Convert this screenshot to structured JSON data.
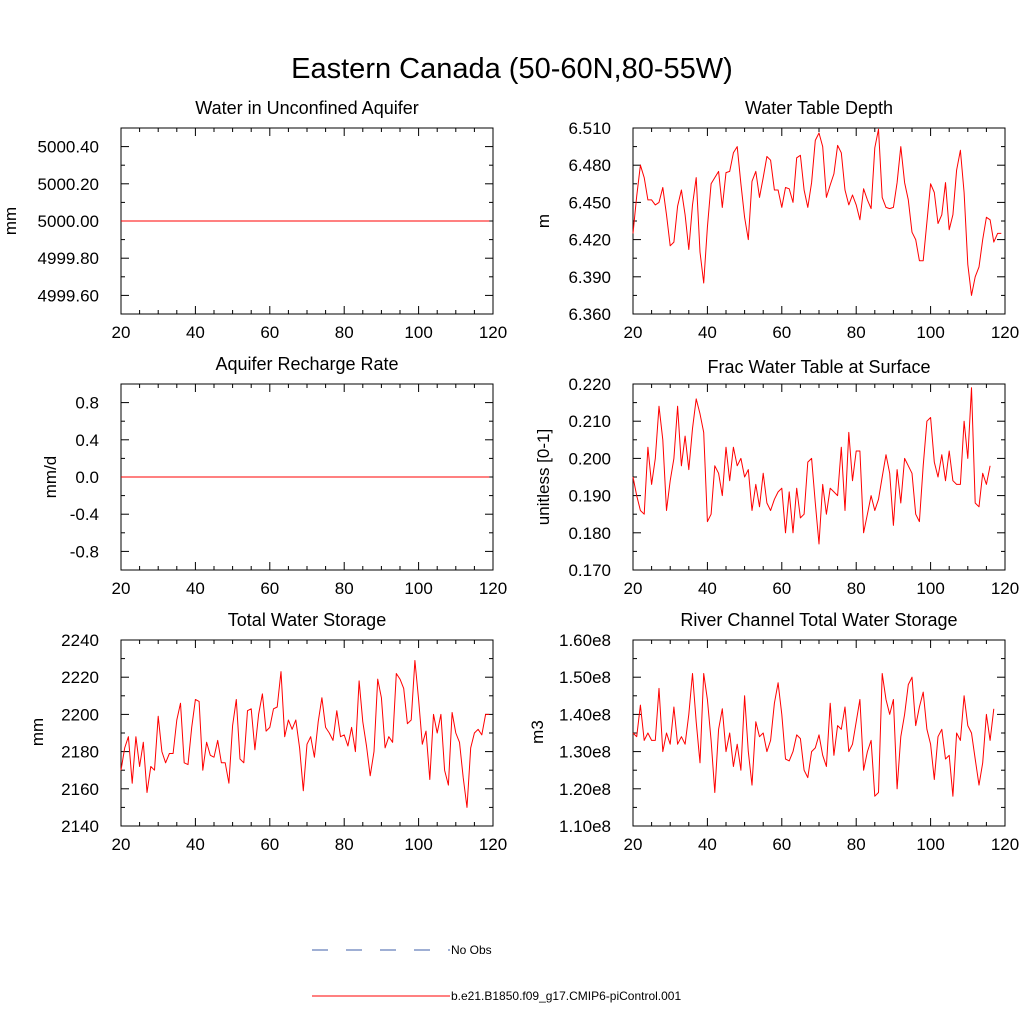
{
  "figure": {
    "title": "Eastern Canada (50-60N,80-55W)"
  },
  "legend": {
    "obs_label": "No Obs",
    "obs_color": "#3f5fa8",
    "model_label": "b.e21.B1850.f09_g17.CMIP6-piControl.001",
    "model_color": "#ff0000"
  },
  "chart_data": [
    {
      "type": "line",
      "title": "Water in Unconfined Aquifer",
      "xlabel": "",
      "ylabel": "mm",
      "xlim": [
        20,
        120
      ],
      "ylim": [
        4999.5,
        5000.5
      ],
      "xticks": [
        20,
        40,
        60,
        80,
        100,
        120
      ],
      "yticks": [
        4999.6,
        4999.8,
        5000.0,
        5000.2,
        5000.4
      ],
      "ytick_labels": [
        "4999.60",
        "4999.80",
        "5000.00",
        "5000.20",
        "5000.40"
      ],
      "series": [
        {
          "x_start": 20,
          "values": [
            5000,
            5000,
            5000,
            5000,
            5000,
            5000,
            5000,
            5000,
            5000,
            5000,
            5000,
            5000,
            5000,
            5000,
            5000,
            5000,
            5000,
            5000,
            5000,
            5000,
            5000,
            5000,
            5000,
            5000,
            5000,
            5000,
            5000,
            5000,
            5000,
            5000,
            5000,
            5000,
            5000,
            5000,
            5000,
            5000,
            5000,
            5000,
            5000,
            5000,
            5000,
            5000,
            5000,
            5000,
            5000,
            5000,
            5000,
            5000,
            5000,
            5000,
            5000,
            5000,
            5000,
            5000,
            5000,
            5000,
            5000,
            5000,
            5000,
            5000,
            5000,
            5000,
            5000,
            5000,
            5000,
            5000,
            5000,
            5000,
            5000,
            5000,
            5000,
            5000,
            5000,
            5000,
            5000,
            5000,
            5000,
            5000,
            5000,
            5000,
            5000,
            5000,
            5000,
            5000,
            5000,
            5000,
            5000,
            5000,
            5000,
            5000,
            5000,
            5000,
            5000,
            5000,
            5000,
            5000,
            5000,
            5000,
            5000,
            5000
          ]
        }
      ]
    },
    {
      "type": "line",
      "title": "Water Table Depth",
      "xlabel": "",
      "ylabel": "m",
      "xlim": [
        20,
        120
      ],
      "ylim": [
        6.36,
        6.51
      ],
      "xticks": [
        20,
        40,
        60,
        80,
        100,
        120
      ],
      "yticks": [
        6.36,
        6.39,
        6.42,
        6.45,
        6.48,
        6.51
      ],
      "ytick_labels": [
        "6.360",
        "6.390",
        "6.420",
        "6.450",
        "6.480",
        "6.510"
      ],
      "series": [
        {
          "x_start": 20,
          "values": [
            6.425,
            6.455,
            6.48,
            6.47,
            6.452,
            6.452,
            6.448,
            6.45,
            6.462,
            6.44,
            6.415,
            6.418,
            6.447,
            6.46,
            6.44,
            6.412,
            6.448,
            6.47,
            6.41,
            6.385,
            6.43,
            6.465,
            6.47,
            6.475,
            6.446,
            6.474,
            6.475,
            6.49,
            6.495,
            6.465,
            6.438,
            6.42,
            6.467,
            6.475,
            6.454,
            6.47,
            6.487,
            6.484,
            6.46,
            6.46,
            6.446,
            6.462,
            6.461,
            6.45,
            6.486,
            6.488,
            6.46,
            6.446,
            6.466,
            6.5,
            6.506,
            6.495,
            6.454,
            6.464,
            6.473,
            6.496,
            6.49,
            6.46,
            6.448,
            6.456,
            6.448,
            6.436,
            6.461,
            6.452,
            6.445,
            6.494,
            6.509,
            6.454,
            6.446,
            6.445,
            6.446,
            6.466,
            6.495,
            6.466,
            6.452,
            6.426,
            6.42,
            6.403,
            6.403,
            6.434,
            6.465,
            6.458,
            6.433,
            6.44,
            6.466,
            6.428,
            6.44,
            6.476,
            6.492,
            6.458,
            6.4,
            6.375,
            6.39,
            6.398,
            6.42,
            6.438,
            6.436,
            6.418,
            6.425,
            6.425
          ]
        }
      ]
    },
    {
      "type": "line",
      "title": "Aquifer Recharge Rate",
      "xlabel": "",
      "ylabel": "mm/d",
      "xlim": [
        20,
        120
      ],
      "ylim": [
        -1.0,
        1.0
      ],
      "xticks": [
        20,
        40,
        60,
        80,
        100,
        120
      ],
      "yticks": [
        -0.8,
        -0.4,
        0.0,
        0.4,
        0.8
      ],
      "ytick_labels": [
        "-0.8",
        "-0.4",
        "0.0",
        "0.4",
        "0.8"
      ],
      "series": [
        {
          "x_start": 20,
          "values": [
            0,
            0,
            0,
            0,
            0,
            0,
            0,
            0,
            0,
            0,
            0,
            0,
            0,
            0,
            0,
            0,
            0,
            0,
            0,
            0,
            0,
            0,
            0,
            0,
            0,
            0,
            0,
            0,
            0,
            0,
            0,
            0,
            0,
            0,
            0,
            0,
            0,
            0,
            0,
            0,
            0,
            0,
            0,
            0,
            0,
            0,
            0,
            0,
            0,
            0,
            0,
            0,
            0,
            0,
            0,
            0,
            0,
            0,
            0,
            0,
            0,
            0,
            0,
            0,
            0,
            0,
            0,
            0,
            0,
            0,
            0,
            0,
            0,
            0,
            0,
            0,
            0,
            0,
            0,
            0,
            0,
            0,
            0,
            0,
            0,
            0,
            0,
            0,
            0,
            0,
            0,
            0,
            0,
            0,
            0,
            0,
            0,
            0,
            0,
            0
          ]
        }
      ]
    },
    {
      "type": "line",
      "title": "Frac Water Table at Surface",
      "xlabel": "",
      "ylabel": "unitless [0-1]",
      "xlim": [
        20,
        120
      ],
      "ylim": [
        0.17,
        0.22
      ],
      "xticks": [
        20,
        40,
        60,
        80,
        100,
        120
      ],
      "yticks": [
        0.17,
        0.18,
        0.19,
        0.2,
        0.21,
        0.22
      ],
      "ytick_labels": [
        "0.170",
        "0.180",
        "0.190",
        "0.200",
        "0.210",
        "0.220"
      ],
      "series": [
        {
          "x_start": 20,
          "values": [
            0.195,
            0.19,
            0.186,
            0.185,
            0.203,
            0.193,
            0.2,
            0.214,
            0.205,
            0.186,
            0.194,
            0.2,
            0.214,
            0.198,
            0.206,
            0.197,
            0.208,
            0.216,
            0.212,
            0.207,
            0.183,
            0.185,
            0.198,
            0.196,
            0.19,
            0.203,
            0.194,
            0.203,
            0.198,
            0.2,
            0.195,
            0.197,
            0.186,
            0.193,
            0.187,
            0.196,
            0.188,
            0.186,
            0.189,
            0.191,
            0.192,
            0.18,
            0.191,
            0.18,
            0.192,
            0.184,
            0.185,
            0.199,
            0.2,
            0.188,
            0.177,
            0.193,
            0.185,
            0.192,
            0.191,
            0.19,
            0.203,
            0.186,
            0.207,
            0.194,
            0.202,
            0.202,
            0.18,
            0.185,
            0.19,
            0.186,
            0.189,
            0.195,
            0.201,
            0.196,
            0.182,
            0.197,
            0.188,
            0.2,
            0.198,
            0.196,
            0.185,
            0.183,
            0.198,
            0.21,
            0.211,
            0.199,
            0.195,
            0.201,
            0.194,
            0.202,
            0.194,
            0.193,
            0.193,
            0.21,
            0.2,
            0.219,
            0.188,
            0.187,
            0.196,
            0.193,
            0.198
          ]
        }
      ]
    },
    {
      "type": "line",
      "title": "Total Water Storage",
      "xlabel": "",
      "ylabel": "mm",
      "xlim": [
        20,
        120
      ],
      "ylim": [
        2140,
        2240
      ],
      "xticks": [
        20,
        40,
        60,
        80,
        100,
        120
      ],
      "yticks": [
        2140,
        2160,
        2180,
        2200,
        2220,
        2240
      ],
      "ytick_labels": [
        "2140",
        "2160",
        "2180",
        "2200",
        "2220",
        "2240"
      ],
      "series": [
        {
          "x_start": 20,
          "values": [
            2170,
            2182,
            2188,
            2163,
            2188,
            2172,
            2185,
            2158,
            2172,
            2170,
            2199,
            2180,
            2174,
            2179,
            2179,
            2197,
            2206,
            2174,
            2173,
            2193,
            2208,
            2207,
            2170,
            2185,
            2178,
            2177,
            2186,
            2174,
            2174,
            2163,
            2194,
            2208,
            2176,
            2174,
            2202,
            2203,
            2181,
            2200,
            2211,
            2191,
            2193,
            2203,
            2204,
            2223,
            2188,
            2197,
            2192,
            2197,
            2182,
            2159,
            2184,
            2188,
            2177,
            2196,
            2209,
            2193,
            2190,
            2186,
            2202,
            2188,
            2189,
            2183,
            2193,
            2180,
            2218,
            2196,
            2183,
            2167,
            2180,
            2219,
            2209,
            2182,
            2188,
            2185,
            2222,
            2219,
            2214,
            2195,
            2197,
            2229,
            2208,
            2184,
            2191,
            2165,
            2200,
            2190,
            2200,
            2170,
            2162,
            2201,
            2190,
            2185,
            2166,
            2150,
            2182,
            2190,
            2192,
            2189,
            2200,
            2200
          ]
        }
      ]
    },
    {
      "type": "line",
      "title": "River Channel Total Water Storage",
      "xlabel": "",
      "ylabel": "m3",
      "xlim": [
        20,
        120
      ],
      "ylim": [
        110000000.0,
        160000000.0
      ],
      "xticks": [
        20,
        40,
        60,
        80,
        100,
        120
      ],
      "yticks": [
        110000000.0,
        120000000.0,
        130000000.0,
        140000000.0,
        150000000.0,
        160000000.0
      ],
      "ytick_labels": [
        "1.10e8",
        "1.20e8",
        "1.30e8",
        "1.40e8",
        "1.50e8",
        "1.60e8"
      ],
      "series": [
        {
          "x_start": 20,
          "values": [
            135000000.0,
            134000000.0,
            142500000.0,
            133000000.0,
            135000000.0,
            133000000.0,
            133000000.0,
            147000000.0,
            130000000.0,
            135000000.0,
            132000000.0,
            142000000.0,
            132000000.0,
            134000000.0,
            132000000.0,
            140000000.0,
            151000000.0,
            138000000.0,
            127000000.0,
            151000000.0,
            144000000.0,
            133000000.0,
            119000000.0,
            136000000.0,
            141500000.0,
            130000000.0,
            135000000.0,
            126000000.0,
            132000000.0,
            125000000.0,
            145000000.0,
            130000000.0,
            121000000.0,
            138000000.0,
            134000000.0,
            135000000.0,
            130000000.0,
            133000000.0,
            143000000.0,
            148500000.0,
            140000000.0,
            128000000.0,
            127500000.0,
            130000000.0,
            134500000.0,
            133500000.0,
            125000000.0,
            123000000.0,
            130000000.0,
            131000000.0,
            134500000.0,
            129000000.0,
            126000000.0,
            143000000.0,
            129000000.0,
            137000000.0,
            136000000.0,
            142000000.0,
            130000000.0,
            132000000.0,
            138000000.0,
            144000000.0,
            125000000.0,
            130000000.0,
            133000000.0,
            118000000.0,
            119000000.0,
            151000000.0,
            144000000.0,
            140000000.0,
            144000000.0,
            120000000.0,
            134000000.0,
            140000000.0,
            148000000.0,
            150000000.0,
            137000000.0,
            142000000.0,
            146000000.0,
            136000000.0,
            132000000.0,
            122500000.0,
            134000000.0,
            136000000.0,
            128000000.0,
            129000000.0,
            118000000.0,
            135000000.0,
            133000000.0,
            145000000.0,
            137000000.0,
            135000000.0,
            128000000.0,
            121000000.0,
            127000000.0,
            140000000.0,
            133000000.0,
            141500000.0
          ]
        }
      ]
    }
  ]
}
